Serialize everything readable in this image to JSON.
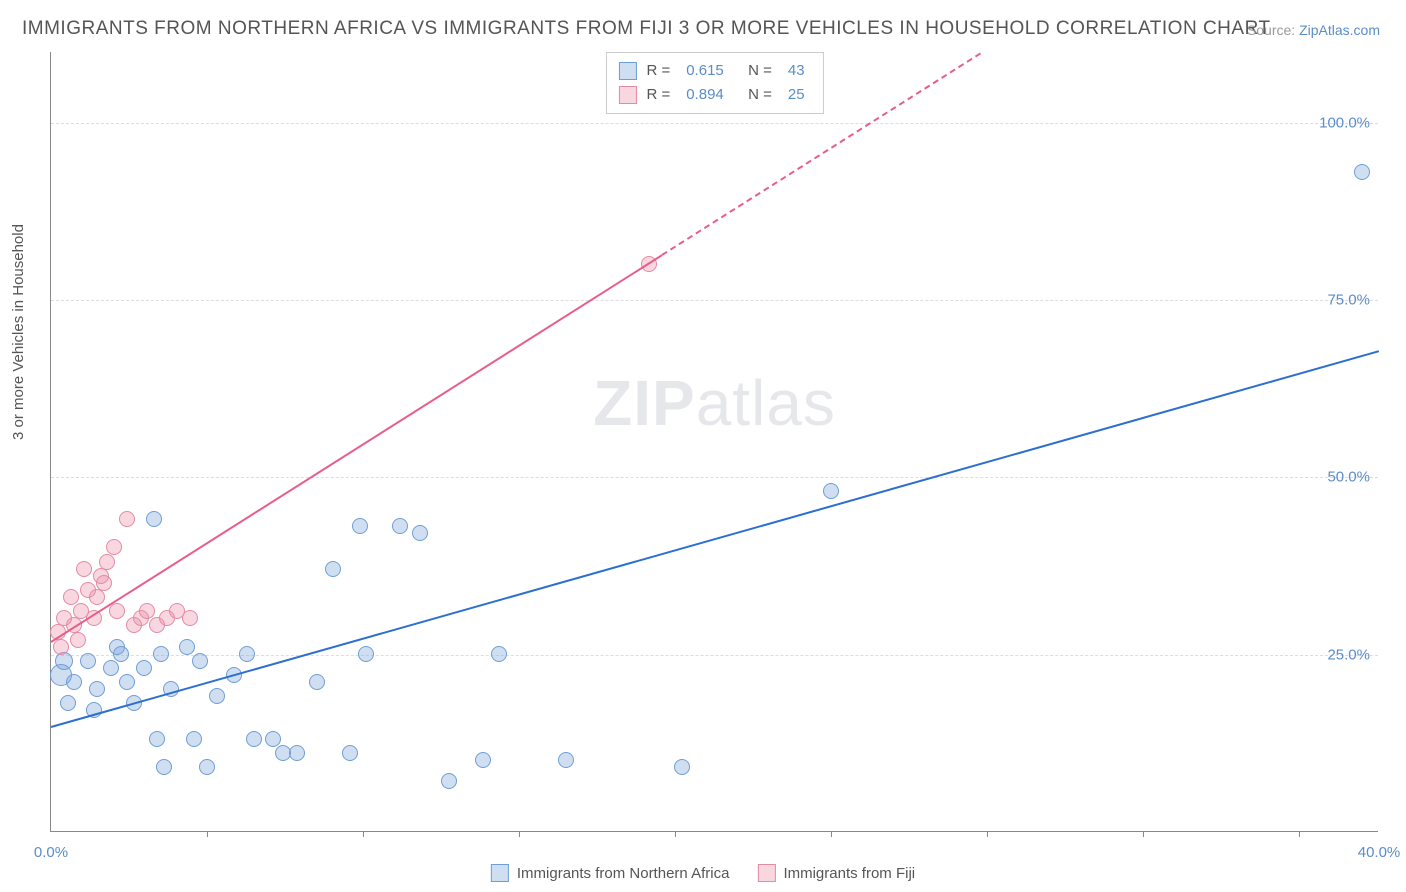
{
  "title": "IMMIGRANTS FROM NORTHERN AFRICA VS IMMIGRANTS FROM FIJI 3 OR MORE VEHICLES IN HOUSEHOLD CORRELATION CHART",
  "source_prefix": "Source: ",
  "source_link": "ZipAtlas.com",
  "ylabel": "3 or more Vehicles in Household",
  "watermark_a": "ZIP",
  "watermark_b": "atlas",
  "chart": {
    "type": "scatter",
    "xlim": [
      0,
      40
    ],
    "ylim": [
      0,
      110
    ],
    "xticks": [
      0,
      40
    ],
    "xtick_labels": [
      "0.0%",
      "40.0%"
    ],
    "xtick_marks": [
      4.7,
      9.4,
      14.1,
      18.8,
      23.5,
      28.2,
      32.9,
      37.6
    ],
    "yticks": [
      25,
      50,
      75,
      100
    ],
    "ytick_labels": [
      "25.0%",
      "50.0%",
      "75.0%",
      "100.0%"
    ],
    "grid_color": "#dddddd",
    "background_color": "#ffffff",
    "axis_color": "#888888",
    "tick_label_color": "#5a8cc9",
    "series": [
      {
        "name": "Immigrants from Northern Africa",
        "fill": "rgba(120,160,215,0.35)",
        "stroke": "#6f9ed6",
        "line_color": "#2b6fd0",
        "r_value": "0.615",
        "n_value": "43",
        "trend": {
          "x1": 0,
          "y1": 15,
          "x2": 40,
          "y2": 68,
          "dash_from_x": 40
        },
        "points": [
          {
            "x": 0.3,
            "y": 22,
            "r": 11
          },
          {
            "x": 0.4,
            "y": 24,
            "r": 9
          },
          {
            "x": 0.7,
            "y": 21,
            "r": 8
          },
          {
            "x": 0.5,
            "y": 18,
            "r": 8
          },
          {
            "x": 1.1,
            "y": 24,
            "r": 8
          },
          {
            "x": 1.3,
            "y": 17,
            "r": 8
          },
          {
            "x": 1.8,
            "y": 23,
            "r": 8
          },
          {
            "x": 1.4,
            "y": 20,
            "r": 8
          },
          {
            "x": 2.1,
            "y": 25,
            "r": 8
          },
          {
            "x": 2.3,
            "y": 21,
            "r": 8
          },
          {
            "x": 2.8,
            "y": 23,
            "r": 8
          },
          {
            "x": 2.5,
            "y": 18,
            "r": 8
          },
          {
            "x": 3.1,
            "y": 44,
            "r": 8
          },
          {
            "x": 3.3,
            "y": 25,
            "r": 8
          },
          {
            "x": 3.2,
            "y": 13,
            "r": 8
          },
          {
            "x": 3.6,
            "y": 20,
            "r": 8
          },
          {
            "x": 3.4,
            "y": 9,
            "r": 8
          },
          {
            "x": 4.1,
            "y": 26,
            "r": 8
          },
          {
            "x": 4.5,
            "y": 24,
            "r": 8
          },
          {
            "x": 4.3,
            "y": 13,
            "r": 8
          },
          {
            "x": 5.0,
            "y": 19,
            "r": 8
          },
          {
            "x": 4.7,
            "y": 9,
            "r": 8
          },
          {
            "x": 5.5,
            "y": 22,
            "r": 8
          },
          {
            "x": 5.9,
            "y": 25,
            "r": 8
          },
          {
            "x": 6.1,
            "y": 13,
            "r": 8
          },
          {
            "x": 6.7,
            "y": 13,
            "r": 8
          },
          {
            "x": 7.0,
            "y": 11,
            "r": 8
          },
          {
            "x": 7.4,
            "y": 11,
            "r": 8
          },
          {
            "x": 8.0,
            "y": 21,
            "r": 8
          },
          {
            "x": 8.5,
            "y": 37,
            "r": 8
          },
          {
            "x": 9.3,
            "y": 43,
            "r": 8
          },
          {
            "x": 9.0,
            "y": 11,
            "r": 8
          },
          {
            "x": 9.5,
            "y": 25,
            "r": 8
          },
          {
            "x": 10.5,
            "y": 43,
            "r": 8
          },
          {
            "x": 11.1,
            "y": 42,
            "r": 8
          },
          {
            "x": 12.0,
            "y": 7,
            "r": 8
          },
          {
            "x": 13.5,
            "y": 25,
            "r": 8
          },
          {
            "x": 13.0,
            "y": 10,
            "r": 8
          },
          {
            "x": 15.5,
            "y": 10,
            "r": 8
          },
          {
            "x": 19.0,
            "y": 9,
            "r": 8
          },
          {
            "x": 23.5,
            "y": 48,
            "r": 8
          },
          {
            "x": 39.5,
            "y": 93,
            "r": 8
          },
          {
            "x": 2.0,
            "y": 26,
            "r": 8
          }
        ]
      },
      {
        "name": "Immigrants from Fiji",
        "fill": "rgba(235,140,165,0.35)",
        "stroke": "#e48aa6",
        "line_color": "#e85d8a",
        "r_value": "0.894",
        "n_value": "25",
        "trend": {
          "x1": 0,
          "y1": 27,
          "x2": 28,
          "y2": 110,
          "dash_from_x": 18.4
        },
        "points": [
          {
            "x": 0.2,
            "y": 28,
            "r": 8
          },
          {
            "x": 0.4,
            "y": 30,
            "r": 8
          },
          {
            "x": 0.3,
            "y": 26,
            "r": 8
          },
          {
            "x": 0.6,
            "y": 33,
            "r": 8
          },
          {
            "x": 0.7,
            "y": 29,
            "r": 8
          },
          {
            "x": 0.9,
            "y": 31,
            "r": 8
          },
          {
            "x": 0.8,
            "y": 27,
            "r": 8
          },
          {
            "x": 1.1,
            "y": 34,
            "r": 8
          },
          {
            "x": 1.0,
            "y": 37,
            "r": 8
          },
          {
            "x": 1.3,
            "y": 30,
            "r": 8
          },
          {
            "x": 1.5,
            "y": 36,
            "r": 8
          },
          {
            "x": 1.4,
            "y": 33,
            "r": 8
          },
          {
            "x": 1.7,
            "y": 38,
            "r": 8
          },
          {
            "x": 1.6,
            "y": 35,
            "r": 8
          },
          {
            "x": 1.9,
            "y": 40,
            "r": 8
          },
          {
            "x": 2.0,
            "y": 31,
            "r": 8
          },
          {
            "x": 2.3,
            "y": 44,
            "r": 8
          },
          {
            "x": 2.5,
            "y": 29,
            "r": 8
          },
          {
            "x": 2.7,
            "y": 30,
            "r": 8
          },
          {
            "x": 2.9,
            "y": 31,
            "r": 8
          },
          {
            "x": 3.2,
            "y": 29,
            "r": 8
          },
          {
            "x": 3.5,
            "y": 30,
            "r": 8
          },
          {
            "x": 3.8,
            "y": 31,
            "r": 8
          },
          {
            "x": 4.2,
            "y": 30,
            "r": 8
          },
          {
            "x": 18.0,
            "y": 80,
            "r": 8
          }
        ]
      }
    ],
    "legend_top_labels": {
      "R": "R  =",
      "N": "N  ="
    },
    "legend_bottom": [
      {
        "label": "Immigrants from Northern Africa",
        "series": 0
      },
      {
        "label": "Immigrants from Fiji",
        "series": 1
      }
    ]
  }
}
